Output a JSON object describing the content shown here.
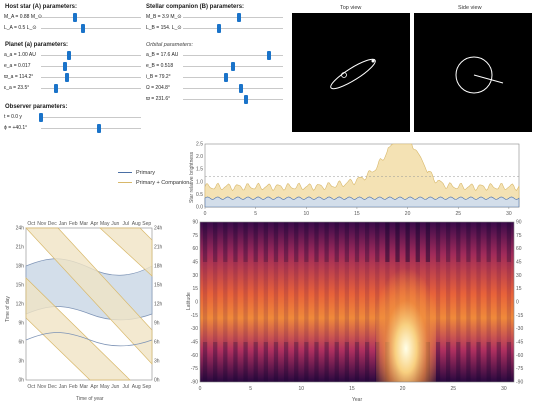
{
  "host_star": {
    "title": "Host star (A) parameters:",
    "params": [
      {
        "label": "M_A = 0.88 M_⊙",
        "value": 0.34
      },
      {
        "label": "L_A = 0.5 L_⊙",
        "value": 0.42
      }
    ]
  },
  "planet": {
    "title": "Planet (a) parameters:",
    "params": [
      {
        "label": "a_a = 1.00 AU",
        "value": 0.28
      },
      {
        "label": "e_a = 0.017",
        "value": 0.24
      },
      {
        "label": "ϖ_a = 114.2°",
        "value": 0.26
      },
      {
        "label": "ε_a = 23.5°",
        "value": 0.15
      }
    ]
  },
  "observer": {
    "title": "Observer parameters:",
    "params": [
      {
        "label": "t = 0.0 y",
        "value": 0.0
      },
      {
        "label": "ϕ = +40.1°",
        "value": 0.58
      }
    ]
  },
  "companion": {
    "title": "Stellar companion (B) parameters:",
    "params": [
      {
        "label": "M_B = 3.9 M_⊙",
        "value": 0.56
      },
      {
        "label": "L_B = 154. L_⊙",
        "value": 0.36
      }
    ]
  },
  "orbital": {
    "title": "Orbital parameters:",
    "params": [
      {
        "label": "a_B = 17.6 AU",
        "value": 0.86
      },
      {
        "label": "e_B = 0.518",
        "value": 0.5
      },
      {
        "label": "i_B = 79.2°",
        "value": 0.43
      },
      {
        "label": "Ω = 204.8°",
        "value": 0.58
      },
      {
        "label": "ϖ = 231.6°",
        "value": 0.63
      }
    ]
  },
  "views": {
    "top_title": "Top view",
    "side_title": "Side view"
  },
  "legend": {
    "primary": "Primary",
    "primary_companion": "Primary + Companion",
    "primary_color": "#4a6fa5",
    "companion_color": "#d8b86a"
  },
  "brightness_chart": {
    "ylabel": "Star relative brightness",
    "yticks": [
      "0.0",
      "0.5",
      "1.0",
      "1.5",
      "2.0",
      "2.5"
    ],
    "xticks": [
      "0",
      "5",
      "10",
      "15",
      "20",
      "25",
      "30"
    ]
  },
  "calendar_chart": {
    "months": [
      "Oct",
      "Nov",
      "Dec",
      "Jan",
      "Feb",
      "Mar",
      "Apr",
      "May",
      "Jun",
      "Jul",
      "Aug",
      "Sep"
    ],
    "hours": [
      "24h",
      "21h",
      "18h",
      "15h",
      "12h",
      "9h",
      "6h",
      "3h",
      "0h"
    ],
    "ylabel": "Time of day",
    "xlabel": "Time of year"
  },
  "heatmap_chart": {
    "ylabel": "Latitude",
    "xlabel": "Year",
    "yticks_left": [
      "90",
      "75",
      "60",
      "45",
      "30",
      "15",
      "0",
      "-15",
      "-30",
      "-45",
      "-60",
      "-75",
      "-90"
    ],
    "yticks_right": [
      "90",
      "75",
      "60",
      "45",
      "30",
      "15",
      "0",
      "-15",
      "-30",
      "-45",
      "-60",
      "-75",
      "-90"
    ],
    "xticks": [
      "0",
      "5",
      "10",
      "15",
      "20",
      "25",
      "30"
    ]
  }
}
